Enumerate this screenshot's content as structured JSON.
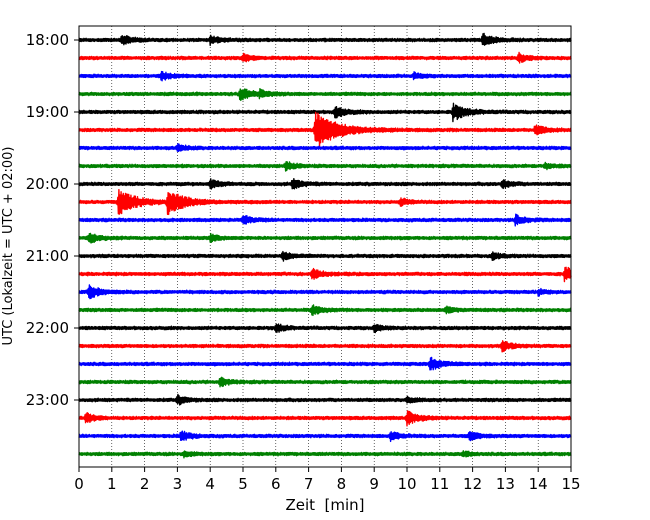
{
  "chart_data": {
    "type": "line",
    "title": "",
    "xlabel": "Zeit  [min]",
    "ylabel": "UTC (Lokalzeit = UTC + 02:00)",
    "xlim": [
      0,
      15
    ],
    "x_ticks": [
      "0",
      "1",
      "2",
      "3",
      "4",
      "5",
      "6",
      "7",
      "8",
      "9",
      "10",
      "11",
      "12",
      "13",
      "14",
      "15"
    ],
    "y_ticks": [
      {
        "label": "18:00",
        "trace": 0
      },
      {
        "label": "19:00",
        "trace": 4
      },
      {
        "label": "20:00",
        "trace": 8
      },
      {
        "label": "21:00",
        "trace": 12
      },
      {
        "label": "22:00",
        "trace": 16
      },
      {
        "label": "23:00",
        "trace": 20
      }
    ],
    "grid": "vertical dotted at each minute",
    "trace_minutes": 15,
    "trace_colors": [
      "#000000",
      "#ff0000",
      "#0000ff",
      "#008000"
    ],
    "traces": [
      {
        "start": "18:00",
        "color": "#000000",
        "events": [
          {
            "min": 1.3,
            "amp": 0.35
          },
          {
            "min": 4.0,
            "amp": 0.3
          },
          {
            "min": 12.3,
            "amp": 0.45
          }
        ]
      },
      {
        "start": "18:15",
        "color": "#ff0000",
        "events": [
          {
            "min": 5.0,
            "amp": 0.25
          },
          {
            "min": 13.4,
            "amp": 0.3
          }
        ]
      },
      {
        "start": "18:30",
        "color": "#0000ff",
        "events": [
          {
            "min": 2.5,
            "amp": 0.3
          },
          {
            "min": 10.2,
            "amp": 0.2
          }
        ]
      },
      {
        "start": "18:45",
        "color": "#008000",
        "events": [
          {
            "min": 4.9,
            "amp": 0.45
          },
          {
            "min": 5.5,
            "amp": 0.25
          }
        ]
      },
      {
        "start": "19:00",
        "color": "#000000",
        "events": [
          {
            "min": 7.8,
            "amp": 0.4
          },
          {
            "min": 11.4,
            "amp": 0.6
          }
        ]
      },
      {
        "start": "19:15",
        "color": "#ff0000",
        "events": [
          {
            "min": 7.2,
            "amp": 1.3
          },
          {
            "min": 13.9,
            "amp": 0.35
          }
        ]
      },
      {
        "start": "19:30",
        "color": "#0000ff",
        "events": [
          {
            "min": 3.0,
            "amp": 0.25
          }
        ]
      },
      {
        "start": "19:45",
        "color": "#008000",
        "events": [
          {
            "min": 6.3,
            "amp": 0.3
          },
          {
            "min": 14.2,
            "amp": 0.2
          }
        ]
      },
      {
        "start": "20:00",
        "color": "#000000",
        "events": [
          {
            "min": 4.0,
            "amp": 0.3
          },
          {
            "min": 6.5,
            "amp": 0.35
          },
          {
            "min": 12.9,
            "amp": 0.3
          }
        ]
      },
      {
        "start": "20:15",
        "color": "#ff0000",
        "events": [
          {
            "min": 1.2,
            "amp": 0.9
          },
          {
            "min": 2.7,
            "amp": 0.85
          },
          {
            "min": 9.8,
            "amp": 0.25
          }
        ]
      },
      {
        "start": "20:30",
        "color": "#0000ff",
        "events": [
          {
            "min": 5.0,
            "amp": 0.3
          },
          {
            "min": 13.3,
            "amp": 0.35
          }
        ]
      },
      {
        "start": "20:45",
        "color": "#008000",
        "events": [
          {
            "min": 0.3,
            "amp": 0.35
          },
          {
            "min": 4.0,
            "amp": 0.25
          }
        ]
      },
      {
        "start": "21:00",
        "color": "#000000",
        "events": [
          {
            "min": 6.2,
            "amp": 0.3
          },
          {
            "min": 12.6,
            "amp": 0.25
          }
        ]
      },
      {
        "start": "21:15",
        "color": "#ff0000",
        "events": [
          {
            "min": 7.1,
            "amp": 0.35
          },
          {
            "min": 14.8,
            "amp": 0.5
          }
        ]
      },
      {
        "start": "21:30",
        "color": "#0000ff",
        "events": [
          {
            "min": 0.3,
            "amp": 0.45
          },
          {
            "min": 14.0,
            "amp": 0.2
          }
        ]
      },
      {
        "start": "21:45",
        "color": "#008000",
        "events": [
          {
            "min": 7.1,
            "amp": 0.35
          },
          {
            "min": 11.2,
            "amp": 0.2
          }
        ]
      },
      {
        "start": "22:00",
        "color": "#000000",
        "events": [
          {
            "min": 6.0,
            "amp": 0.3
          },
          {
            "min": 9.0,
            "amp": 0.25
          }
        ]
      },
      {
        "start": "22:15",
        "color": "#ff0000",
        "events": [
          {
            "min": 12.9,
            "amp": 0.35
          }
        ]
      },
      {
        "start": "22:30",
        "color": "#0000ff",
        "events": [
          {
            "min": 10.7,
            "amp": 0.45
          }
        ]
      },
      {
        "start": "22:45",
        "color": "#008000",
        "events": [
          {
            "min": 4.3,
            "amp": 0.3
          }
        ]
      },
      {
        "start": "23:00",
        "color": "#000000",
        "events": [
          {
            "min": 3.0,
            "amp": 0.3
          },
          {
            "min": 10.0,
            "amp": 0.2
          }
        ]
      },
      {
        "start": "23:15",
        "color": "#ff0000",
        "events": [
          {
            "min": 0.2,
            "amp": 0.35
          },
          {
            "min": 10.0,
            "amp": 0.45
          }
        ]
      },
      {
        "start": "23:30",
        "color": "#0000ff",
        "events": [
          {
            "min": 3.1,
            "amp": 0.35
          },
          {
            "min": 9.5,
            "amp": 0.3
          },
          {
            "min": 11.9,
            "amp": 0.3
          }
        ]
      },
      {
        "start": "23:45",
        "color": "#008000",
        "events": [
          {
            "min": 3.2,
            "amp": 0.2
          },
          {
            "min": 11.7,
            "amp": 0.2
          }
        ]
      }
    ]
  }
}
